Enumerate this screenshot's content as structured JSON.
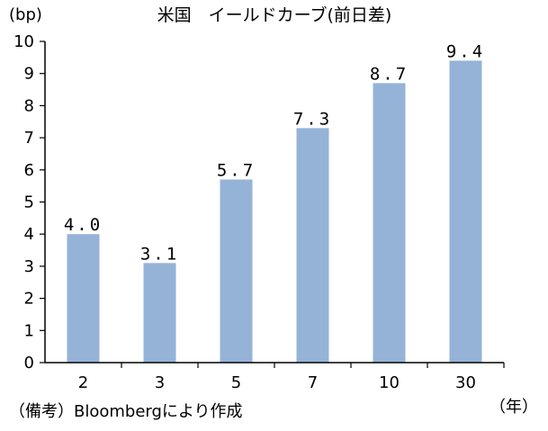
{
  "chart_data": {
    "type": "bar",
    "title": "米国　イールドカーブ(前日差)",
    "ylabel": "(bp)",
    "xlabel": "（年）",
    "categories": [
      "2",
      "3",
      "5",
      "7",
      "10",
      "30"
    ],
    "values": [
      4.0,
      3.1,
      5.7,
      7.3,
      8.7,
      9.4
    ],
    "data_labels": [
      "4.0",
      "3.1",
      "5.7",
      "7.3",
      "8.7",
      "9.4"
    ],
    "ylim": [
      0,
      10
    ],
    "yticks": [
      "0",
      "1",
      "2",
      "3",
      "4",
      "5",
      "6",
      "7",
      "8",
      "9",
      "10"
    ],
    "grid": false,
    "legend": "none",
    "bar_color": "#95b3d7"
  },
  "note": "（備考）Bloombergにより作成"
}
